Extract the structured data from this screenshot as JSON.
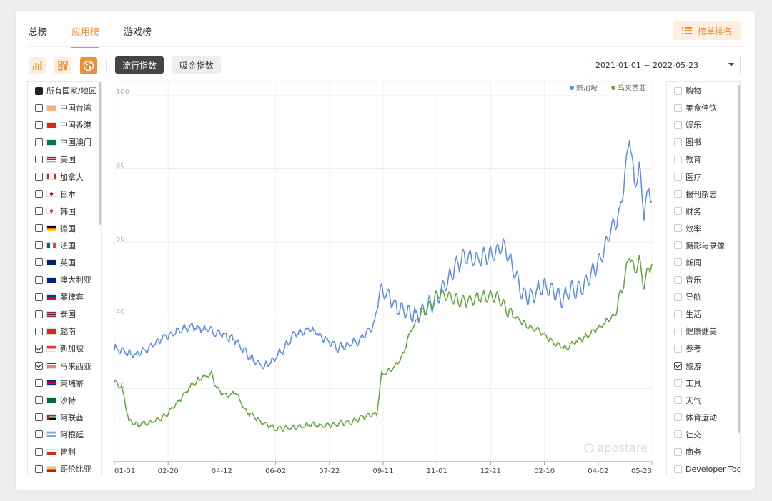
{
  "tabs": [
    "总榜",
    "应用榜",
    "游戏榜"
  ],
  "active_tab": 1,
  "rank_button": "榜单排名",
  "index_buttons": [
    "流行指数",
    "吸金指数"
  ],
  "date_range": "2021-01-01 ~ 2022-05-23",
  "countries": [
    {
      "label": "所有国家/地区",
      "state": "partial",
      "flag": ""
    },
    {
      "label": "中国台湾",
      "state": "off",
      "flag": "tw"
    },
    {
      "label": "中国香港",
      "state": "off",
      "flag": "hk"
    },
    {
      "label": "中国澳门",
      "state": "off",
      "flag": "mo"
    },
    {
      "label": "美国",
      "state": "off",
      "flag": "us"
    },
    {
      "label": "加拿大",
      "state": "off",
      "flag": "ca"
    },
    {
      "label": "日本",
      "state": "off",
      "flag": "jp"
    },
    {
      "label": "韩国",
      "state": "off",
      "flag": "kr"
    },
    {
      "label": "德国",
      "state": "off",
      "flag": "de"
    },
    {
      "label": "法国",
      "state": "off",
      "flag": "fr"
    },
    {
      "label": "英国",
      "state": "off",
      "flag": "gb"
    },
    {
      "label": "澳大利亚",
      "state": "off",
      "flag": "au"
    },
    {
      "label": "菲律宾",
      "state": "off",
      "flag": "ph"
    },
    {
      "label": "泰国",
      "state": "off",
      "flag": "th"
    },
    {
      "label": "越南",
      "state": "off",
      "flag": "vn"
    },
    {
      "label": "新加坡",
      "state": "checked",
      "flag": "sg"
    },
    {
      "label": "马来西亚",
      "state": "checked",
      "flag": "my"
    },
    {
      "label": "柬埔寨",
      "state": "off",
      "flag": "kh"
    },
    {
      "label": "沙特",
      "state": "off",
      "flag": "sa"
    },
    {
      "label": "阿联酋",
      "state": "off",
      "flag": "ae"
    },
    {
      "label": "阿根廷",
      "state": "off",
      "flag": "ar"
    },
    {
      "label": "智利",
      "state": "off",
      "flag": "cl"
    },
    {
      "label": "哥伦比亚",
      "state": "off",
      "flag": "co"
    }
  ],
  "categories": [
    {
      "label": "购物",
      "checked": false
    },
    {
      "label": "美食佳饮",
      "checked": false
    },
    {
      "label": "娱乐",
      "checked": false
    },
    {
      "label": "图书",
      "checked": false
    },
    {
      "label": "教育",
      "checked": false
    },
    {
      "label": "医疗",
      "checked": false
    },
    {
      "label": "报刊杂志",
      "checked": false
    },
    {
      "label": "财务",
      "checked": false
    },
    {
      "label": "效率",
      "checked": false
    },
    {
      "label": "摄影与录像",
      "checked": false
    },
    {
      "label": "新闻",
      "checked": false
    },
    {
      "label": "音乐",
      "checked": false
    },
    {
      "label": "导航",
      "checked": false
    },
    {
      "label": "生活",
      "checked": false
    },
    {
      "label": "健康健美",
      "checked": false
    },
    {
      "label": "参考",
      "checked": false
    },
    {
      "label": "旅游",
      "checked": true
    },
    {
      "label": "工具",
      "checked": false
    },
    {
      "label": "天气",
      "checked": false
    },
    {
      "label": "体育运动",
      "checked": false
    },
    {
      "label": "社交",
      "checked": false
    },
    {
      "label": "商务",
      "checked": false
    },
    {
      "label": "Developer Tools",
      "checked": false
    }
  ],
  "watermark": "appstare",
  "chart_data": {
    "type": "line",
    "ylim": [
      0,
      100
    ],
    "yticks": [
      20,
      40,
      60,
      80,
      100
    ],
    "xticks": [
      "01-01",
      "02-20",
      "04-12",
      "06-02",
      "07-22",
      "09-11",
      "11-01",
      "12-21",
      "02-10",
      "04-02",
      "05-23"
    ],
    "legend_position": "top-right",
    "grid": true,
    "colors": {
      "新加坡": "#5b8ce8",
      "马来西亚": "#5fa63b"
    },
    "series": [
      {
        "name": "新加坡",
        "keypoints": [
          [
            0,
            31
          ],
          [
            10,
            30
          ],
          [
            22,
            29
          ],
          [
            35,
            31
          ],
          [
            50,
            34
          ],
          [
            70,
            36
          ],
          [
            80,
            37
          ],
          [
            95,
            36
          ],
          [
            110,
            35
          ],
          [
            125,
            33
          ],
          [
            135,
            30
          ],
          [
            145,
            27
          ],
          [
            155,
            26
          ],
          [
            165,
            28
          ],
          [
            175,
            31
          ],
          [
            185,
            35
          ],
          [
            200,
            36
          ],
          [
            210,
            35
          ],
          [
            220,
            33
          ],
          [
            230,
            31
          ],
          [
            240,
            32
          ],
          [
            250,
            33
          ],
          [
            260,
            35
          ],
          [
            268,
            38
          ],
          [
            272,
            46
          ],
          [
            280,
            46
          ],
          [
            290,
            42
          ],
          [
            300,
            41
          ],
          [
            310,
            40
          ],
          [
            320,
            42
          ],
          [
            330,
            44
          ],
          [
            340,
            48
          ],
          [
            350,
            53
          ],
          [
            360,
            56
          ],
          [
            370,
            55
          ],
          [
            380,
            56
          ],
          [
            390,
            57
          ],
          [
            400,
            59
          ],
          [
            410,
            53
          ],
          [
            420,
            46
          ],
          [
            430,
            45
          ],
          [
            440,
            48
          ],
          [
            450,
            47
          ],
          [
            460,
            44
          ],
          [
            470,
            47
          ],
          [
            480,
            47
          ],
          [
            490,
            51
          ],
          [
            500,
            55
          ],
          [
            510,
            63
          ],
          [
            520,
            68
          ],
          [
            527,
            82
          ],
          [
            530,
            90
          ],
          [
            535,
            75
          ],
          [
            540,
            80
          ],
          [
            545,
            68
          ],
          [
            550,
            75
          ],
          [
            553,
            71
          ]
        ]
      },
      {
        "name": "马来西亚",
        "keypoints": [
          [
            0,
            22
          ],
          [
            8,
            20
          ],
          [
            15,
            11
          ],
          [
            25,
            10
          ],
          [
            40,
            11
          ],
          [
            55,
            13
          ],
          [
            70,
            18
          ],
          [
            80,
            21
          ],
          [
            90,
            23
          ],
          [
            100,
            24
          ],
          [
            105,
            20
          ],
          [
            115,
            18
          ],
          [
            125,
            19
          ],
          [
            135,
            14
          ],
          [
            145,
            12
          ],
          [
            165,
            9
          ],
          [
            180,
            9
          ],
          [
            200,
            10
          ],
          [
            220,
            10
          ],
          [
            245,
            11
          ],
          [
            262,
            13
          ],
          [
            270,
            13
          ],
          [
            275,
            24
          ],
          [
            285,
            25
          ],
          [
            295,
            28
          ],
          [
            305,
            36
          ],
          [
            315,
            40
          ],
          [
            325,
            43
          ],
          [
            335,
            46
          ],
          [
            345,
            45
          ],
          [
            355,
            44
          ],
          [
            365,
            44
          ],
          [
            375,
            45
          ],
          [
            385,
            45
          ],
          [
            395,
            45
          ],
          [
            405,
            41
          ],
          [
            415,
            39
          ],
          [
            425,
            37
          ],
          [
            435,
            36
          ],
          [
            445,
            34
          ],
          [
            455,
            32
          ],
          [
            465,
            31
          ],
          [
            475,
            33
          ],
          [
            485,
            34
          ],
          [
            495,
            36
          ],
          [
            505,
            38
          ],
          [
            515,
            40
          ],
          [
            525,
            50
          ],
          [
            530,
            57
          ],
          [
            535,
            52
          ],
          [
            540,
            55
          ],
          [
            545,
            48
          ],
          [
            550,
            53
          ],
          [
            553,
            54
          ]
        ]
      }
    ]
  }
}
